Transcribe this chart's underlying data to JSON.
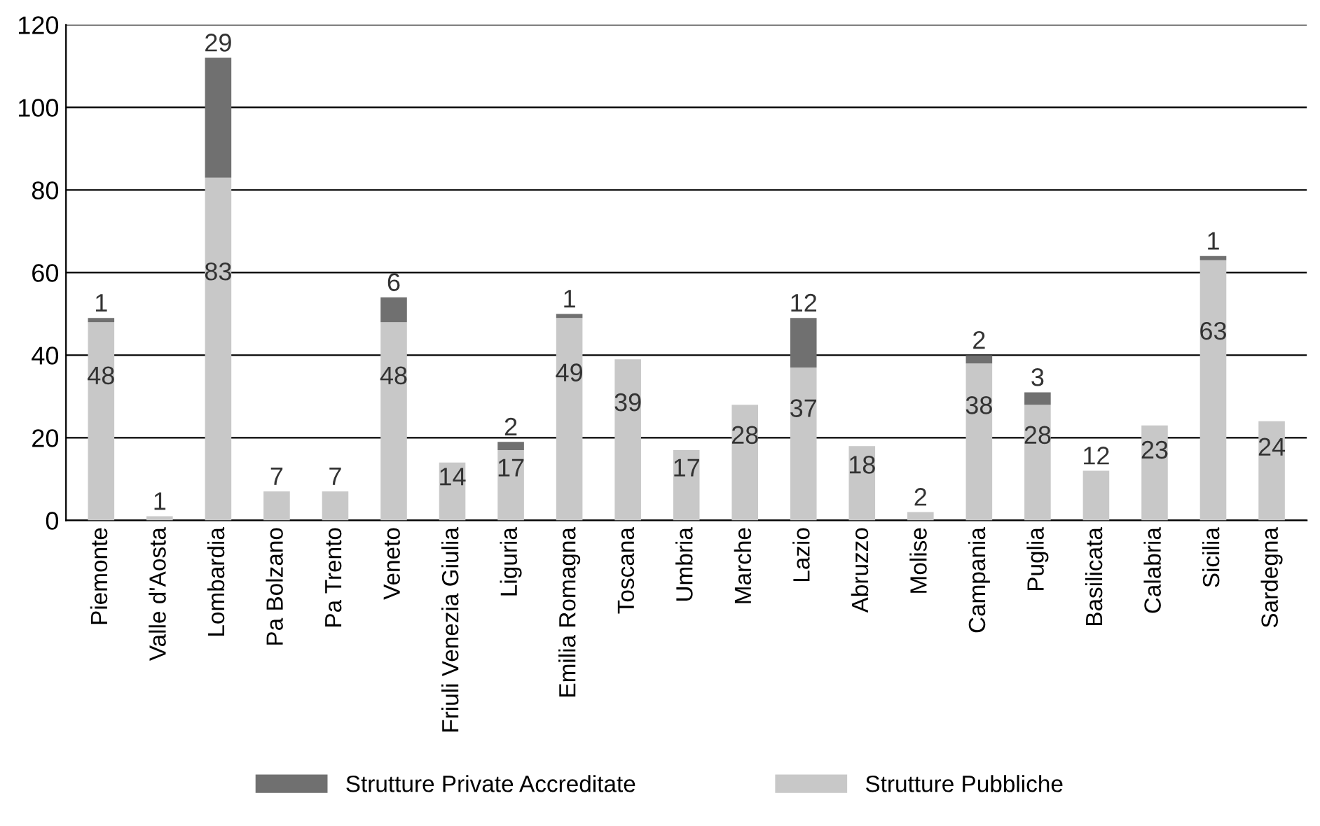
{
  "chart_data": {
    "type": "bar",
    "stacked": true,
    "categories": [
      "Piemonte",
      "Valle d'Aosta",
      "Lombardia",
      "Pa Bolzano",
      "Pa Trento",
      "Veneto",
      "Friuli Venezia Giulia",
      "Liguria",
      "Emilia Romagna",
      "Toscana",
      "Umbria",
      "Marche",
      "Lazio",
      "Abruzzo",
      "Molise",
      "Campania",
      "Puglia",
      "Basilicata",
      "Calabria",
      "Sicilia",
      "Sardegna"
    ],
    "series": [
      {
        "name": "Strutture Pubbliche",
        "color": "#c8c8c8",
        "values": [
          48,
          1,
          83,
          7,
          7,
          48,
          14,
          17,
          49,
          39,
          17,
          28,
          37,
          18,
          2,
          38,
          28,
          12,
          23,
          63,
          24
        ]
      },
      {
        "name": "Strutture Private Accreditate",
        "color": "#707070",
        "values": [
          1,
          null,
          29,
          null,
          null,
          6,
          null,
          2,
          1,
          null,
          null,
          null,
          12,
          null,
          null,
          2,
          3,
          null,
          null,
          1,
          null
        ]
      }
    ],
    "ylim": [
      0,
      120
    ],
    "yticks": [
      0,
      20,
      40,
      60,
      80,
      100,
      120
    ],
    "grid": "y",
    "legend": "bottom",
    "data_labels": true
  }
}
